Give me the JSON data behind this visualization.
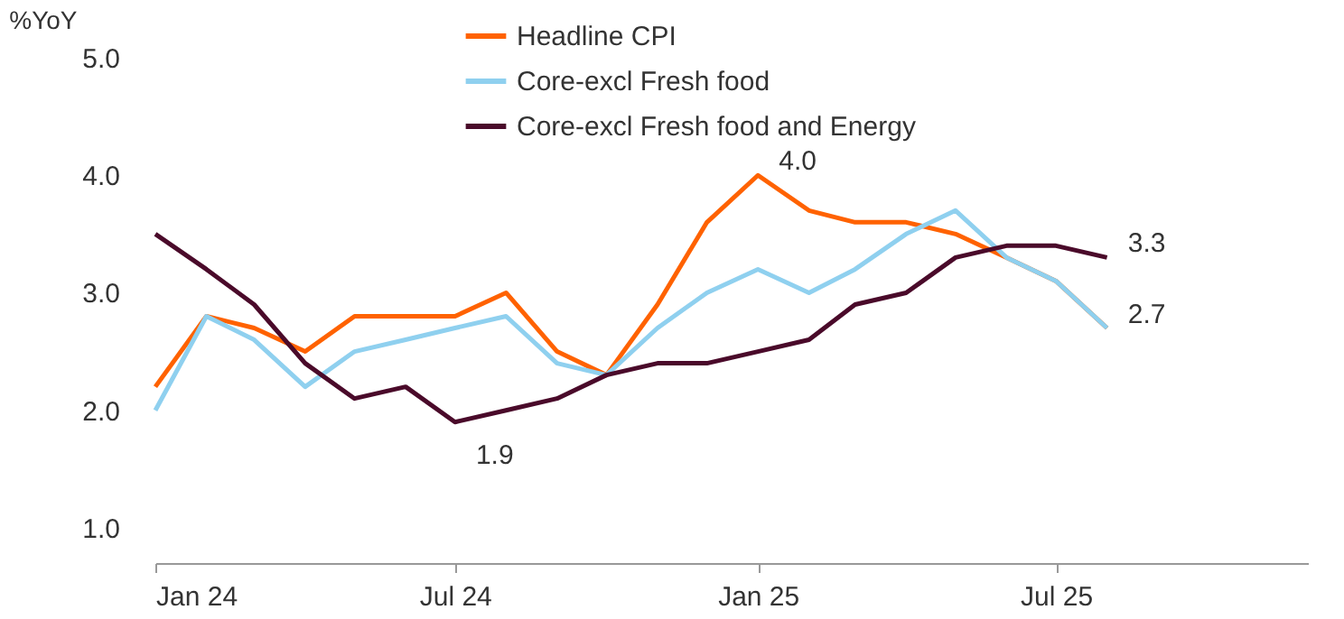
{
  "chart_data": {
    "type": "line",
    "ylabel": "%YoY",
    "x": [
      "2024-01",
      "2024-02",
      "2024-03",
      "2024-04",
      "2024-05",
      "2024-06",
      "2024-07",
      "2024-08",
      "2024-09",
      "2024-10",
      "2024-11",
      "2024-12",
      "2025-01",
      "2025-02",
      "2025-03",
      "2025-04",
      "2025-05",
      "2025-06",
      "2025-07",
      "2025-08"
    ],
    "series": [
      {
        "name": "Headline CPI",
        "color": "#ff6200",
        "values": [
          2.2,
          2.8,
          2.7,
          2.5,
          2.8,
          2.8,
          2.8,
          3.0,
          2.5,
          2.3,
          2.9,
          3.6,
          4.0,
          3.7,
          3.6,
          3.6,
          3.5,
          3.3,
          3.1,
          2.7
        ]
      },
      {
        "name": "Core-excl Fresh food",
        "color": "#8fd0ef",
        "values": [
          2.0,
          2.8,
          2.6,
          2.2,
          2.5,
          2.6,
          2.7,
          2.8,
          2.4,
          2.3,
          2.7,
          3.0,
          3.2,
          3.0,
          3.2,
          3.5,
          3.7,
          3.3,
          3.1,
          2.7
        ]
      },
      {
        "name": "Core-excl Fresh food and Energy",
        "color": "#4a0a2a",
        "values": [
          3.5,
          3.2,
          2.9,
          2.4,
          2.1,
          2.2,
          1.9,
          2.0,
          2.1,
          2.3,
          2.4,
          2.4,
          2.5,
          2.6,
          2.9,
          3.0,
          3.3,
          3.4,
          3.4,
          3.3
        ]
      }
    ],
    "xlim": [
      "2024-01",
      "2025-12"
    ],
    "xticks": [
      {
        "value": "2024-01",
        "label": "Jan 24"
      },
      {
        "value": "2024-07",
        "label": "Jul 24"
      },
      {
        "value": "2025-01",
        "label": "Jan 25"
      },
      {
        "value": "2025-07",
        "label": "Jul 25"
      }
    ],
    "ylim": [
      0.7,
      5.0
    ],
    "yticks": [
      {
        "value": 1,
        "label": "1.0"
      },
      {
        "value": 2,
        "label": "2.0"
      },
      {
        "value": 3,
        "label": "3.0"
      },
      {
        "value": 4,
        "label": "4.0"
      },
      {
        "value": 5,
        "label": "5.0"
      }
    ],
    "annotations": [
      {
        "text": "4.0",
        "x": "2025-01",
        "y": 4.0
      },
      {
        "text": "1.9",
        "x": "2024-07",
        "y": 1.9
      },
      {
        "text": "3.3",
        "x": "2025-08",
        "y": 3.3
      },
      {
        "text": "2.7",
        "x": "2025-08",
        "y": 2.7
      }
    ],
    "grid": false,
    "legend": "top",
    "marker": "none",
    "line_style": "solid"
  }
}
